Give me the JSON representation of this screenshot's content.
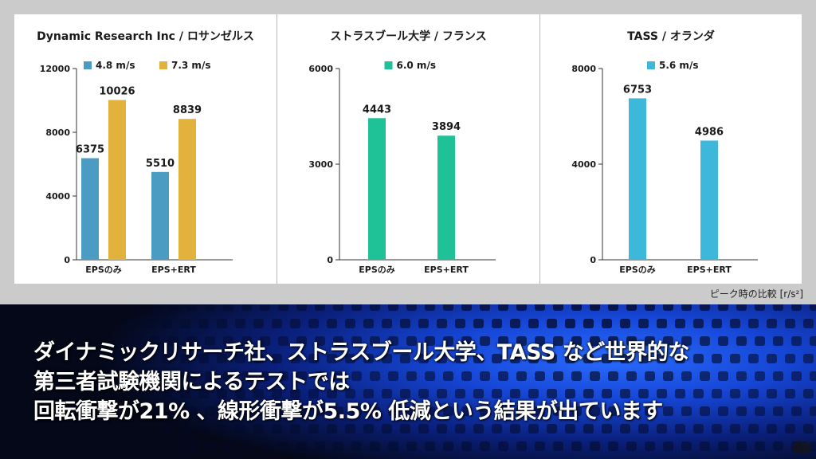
{
  "charts_note": "ピーク時の比較 [r/s²]",
  "caption": {
    "line1": "ダイナミックリサーチ社、ストラスブール大学、TASS など世界的な",
    "line2": "第三者試験機関によるテストでは",
    "line3": "回転衝撃が21% 、線形衝撃が5.5% 低減という結果が出ています"
  },
  "chart_data": [
    {
      "type": "bar",
      "title": "Dynamic Research Inc / ロサンゼルス",
      "categories": [
        "EPSのみ",
        "EPS+ERT"
      ],
      "series": [
        {
          "name": "4.8 m/s",
          "values": [
            6375,
            5510
          ],
          "color": "#4a9cc2"
        },
        {
          "name": "7.3 m/s",
          "values": [
            10026,
            8839
          ],
          "color": "#e2b23c"
        }
      ],
      "ylim": [
        0,
        12000
      ],
      "yticks": [
        "0",
        "4000",
        "8000",
        "12000"
      ],
      "legend": "top"
    },
    {
      "type": "bar",
      "title": "ストラスブール大学 / フランス",
      "categories": [
        "EPSのみ",
        "EPS+ERT"
      ],
      "series": [
        {
          "name": "6.0 m/s",
          "values": [
            4443,
            3894
          ],
          "color": "#1fc196"
        }
      ],
      "ylim": [
        0,
        6000
      ],
      "yticks": [
        "0",
        "3000",
        "6000"
      ],
      "legend": "top"
    },
    {
      "type": "bar",
      "title": "TASS / オランダ",
      "categories": [
        "EPSのみ",
        "EPS+ERT"
      ],
      "series": [
        {
          "name": "5.6 m/s",
          "values": [
            6753,
            4986
          ],
          "color": "#3db8da"
        }
      ],
      "ylim": [
        0,
        8000
      ],
      "yticks": [
        "0",
        "4000",
        "8000"
      ],
      "legend": "top"
    }
  ]
}
